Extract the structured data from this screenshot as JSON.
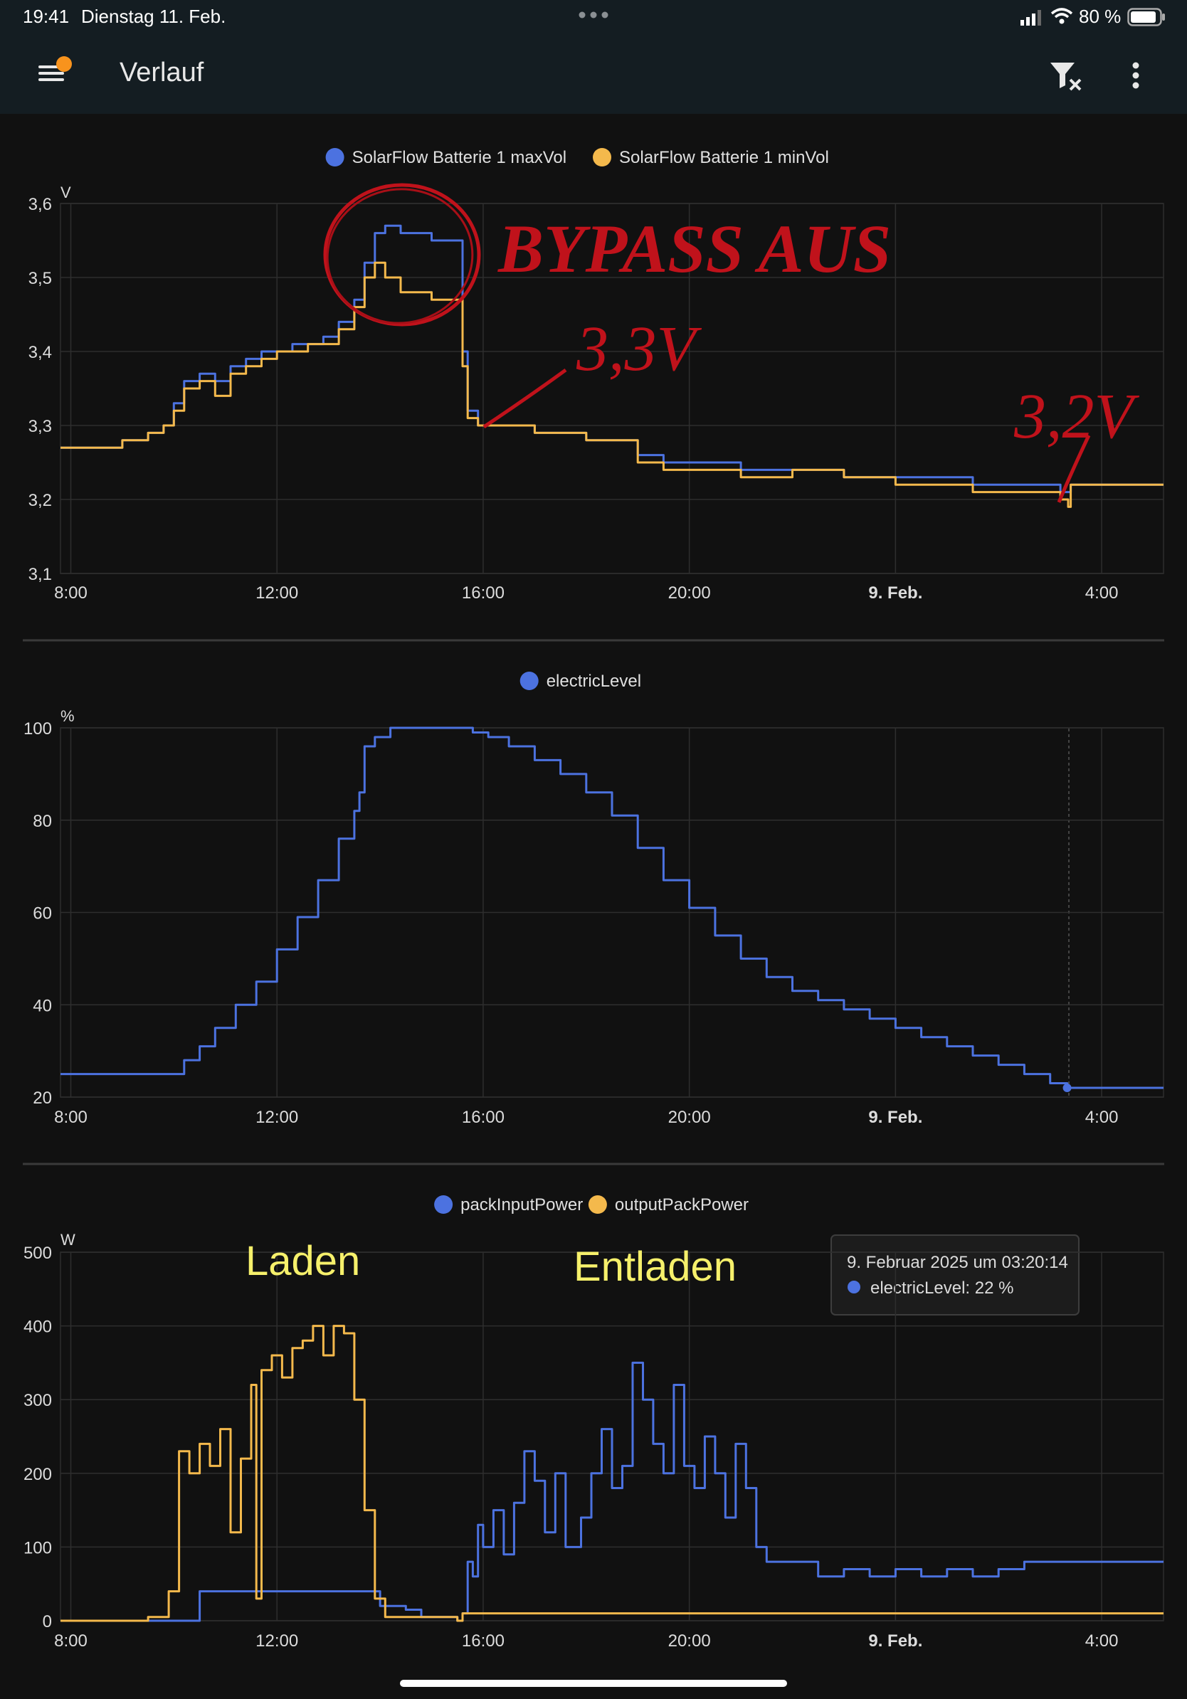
{
  "status_bar": {
    "time": "19:41",
    "date": "Dienstag 11. Feb.",
    "battery": "80 %"
  },
  "app_bar": {
    "title": "Verlauf"
  },
  "colors": {
    "blue": "#4c72e0",
    "yellow": "#f4b94c",
    "annotation_red": "#c0121b",
    "annotation_yellow": "#f6f06b"
  },
  "annotations": {
    "bypass": "BYPASS AUS",
    "v_33": "3,3V",
    "v_32": "3,2V",
    "charge": "Laden",
    "discharge": "Entladen"
  },
  "tooltip": {
    "title": "9. Februar 2025 um 03:20:14",
    "item": "electricLevel: 22 %"
  },
  "chart_data": [
    {
      "type": "line",
      "step": true,
      "ylabel": "V",
      "ylim": [
        3.1,
        3.6
      ],
      "yticks": [
        "3,1",
        "3,2",
        "3,3",
        "3,4",
        "3,5",
        "3,6"
      ],
      "xticks": [
        "8:00",
        "12:00",
        "16:00",
        "20:00",
        "9. Feb.",
        "4:00"
      ],
      "legend": "top-center",
      "grid": true,
      "series": [
        {
          "name": "SolarFlow Batterie 1 maxVol",
          "color": "#4c72e0",
          "points": [
            [
              7.8,
              3.27
            ],
            [
              8.5,
              3.27
            ],
            [
              9.0,
              3.28
            ],
            [
              9.5,
              3.29
            ],
            [
              9.8,
              3.3
            ],
            [
              10.0,
              3.33
            ],
            [
              10.2,
              3.36
            ],
            [
              10.5,
              3.37
            ],
            [
              10.8,
              3.36
            ],
            [
              11.1,
              3.38
            ],
            [
              11.4,
              3.39
            ],
            [
              11.7,
              3.4
            ],
            [
              12.0,
              3.4
            ],
            [
              12.3,
              3.41
            ],
            [
              12.6,
              3.41
            ],
            [
              12.9,
              3.42
            ],
            [
              13.2,
              3.44
            ],
            [
              13.5,
              3.47
            ],
            [
              13.7,
              3.52
            ],
            [
              13.9,
              3.56
            ],
            [
              14.1,
              3.57
            ],
            [
              14.4,
              3.56
            ],
            [
              14.7,
              3.56
            ],
            [
              15.0,
              3.55
            ],
            [
              15.5,
              3.55
            ],
            [
              15.6,
              3.4
            ],
            [
              15.7,
              3.32
            ],
            [
              15.9,
              3.3
            ],
            [
              16.5,
              3.3
            ],
            [
              17.0,
              3.29
            ],
            [
              18.0,
              3.28
            ],
            [
              19.0,
              3.26
            ],
            [
              19.5,
              3.25
            ],
            [
              20.0,
              3.25
            ],
            [
              21.0,
              3.24
            ],
            [
              22.0,
              3.24
            ],
            [
              23.0,
              3.23
            ],
            [
              24.0,
              3.23
            ],
            [
              25.5,
              3.22
            ],
            [
              27.2,
              3.21
            ],
            [
              27.35,
              3.21
            ],
            [
              27.4,
              3.22
            ],
            [
              29.2,
              3.22
            ]
          ]
        },
        {
          "name": "SolarFlow Batterie 1 minVol",
          "color": "#f4b94c",
          "points": [
            [
              7.8,
              3.27
            ],
            [
              8.5,
              3.27
            ],
            [
              9.0,
              3.28
            ],
            [
              9.5,
              3.29
            ],
            [
              9.8,
              3.3
            ],
            [
              10.0,
              3.32
            ],
            [
              10.2,
              3.35
            ],
            [
              10.5,
              3.36
            ],
            [
              10.8,
              3.34
            ],
            [
              11.1,
              3.37
            ],
            [
              11.4,
              3.38
            ],
            [
              11.7,
              3.39
            ],
            [
              12.0,
              3.4
            ],
            [
              12.3,
              3.4
            ],
            [
              12.6,
              3.41
            ],
            [
              12.9,
              3.41
            ],
            [
              13.2,
              3.43
            ],
            [
              13.5,
              3.46
            ],
            [
              13.7,
              3.5
            ],
            [
              13.9,
              3.52
            ],
            [
              14.1,
              3.5
            ],
            [
              14.4,
              3.48
            ],
            [
              14.7,
              3.48
            ],
            [
              15.0,
              3.47
            ],
            [
              15.5,
              3.47
            ],
            [
              15.6,
              3.38
            ],
            [
              15.7,
              3.31
            ],
            [
              15.9,
              3.3
            ],
            [
              16.5,
              3.3
            ],
            [
              17.0,
              3.29
            ],
            [
              18.0,
              3.28
            ],
            [
              19.0,
              3.25
            ],
            [
              19.5,
              3.24
            ],
            [
              20.0,
              3.24
            ],
            [
              21.0,
              3.23
            ],
            [
              22.0,
              3.24
            ],
            [
              23.0,
              3.23
            ],
            [
              24.0,
              3.22
            ],
            [
              25.5,
              3.21
            ],
            [
              27.2,
              3.2
            ],
            [
              27.35,
              3.19
            ],
            [
              27.4,
              3.22
            ],
            [
              29.2,
              3.22
            ]
          ]
        }
      ]
    },
    {
      "type": "line",
      "step": true,
      "ylabel": "%",
      "ylim": [
        20,
        100
      ],
      "yticks": [
        "20",
        "40",
        "60",
        "80",
        "100"
      ],
      "xticks": [
        "8:00",
        "12:00",
        "16:00",
        "20:00",
        "9. Feb.",
        "4:00"
      ],
      "legend": "top-center",
      "grid": true,
      "series": [
        {
          "name": "electricLevel",
          "color": "#4c72e0",
          "points": [
            [
              7.8,
              25
            ],
            [
              9.8,
              25
            ],
            [
              10.2,
              28
            ],
            [
              10.5,
              31
            ],
            [
              10.8,
              35
            ],
            [
              11.2,
              40
            ],
            [
              11.6,
              45
            ],
            [
              12.0,
              52
            ],
            [
              12.4,
              59
            ],
            [
              12.8,
              67
            ],
            [
              13.2,
              76
            ],
            [
              13.5,
              82
            ],
            [
              13.6,
              86
            ],
            [
              13.7,
              96
            ],
            [
              13.9,
              98
            ],
            [
              14.2,
              100
            ],
            [
              15.0,
              100
            ],
            [
              15.6,
              100
            ],
            [
              15.8,
              99
            ],
            [
              16.1,
              98
            ],
            [
              16.5,
              96
            ],
            [
              17.0,
              93
            ],
            [
              17.5,
              90
            ],
            [
              18.0,
              86
            ],
            [
              18.5,
              81
            ],
            [
              19.0,
              74
            ],
            [
              19.5,
              67
            ],
            [
              20.0,
              61
            ],
            [
              20.5,
              55
            ],
            [
              21.0,
              50
            ],
            [
              21.5,
              46
            ],
            [
              22.0,
              43
            ],
            [
              22.5,
              41
            ],
            [
              23.0,
              39
            ],
            [
              23.5,
              37
            ],
            [
              24.0,
              35
            ],
            [
              24.5,
              33
            ],
            [
              25.0,
              31
            ],
            [
              25.5,
              29
            ],
            [
              26.0,
              27
            ],
            [
              26.5,
              25
            ],
            [
              27.0,
              23
            ],
            [
              27.33,
              22
            ],
            [
              29.2,
              22
            ]
          ]
        }
      ]
    },
    {
      "type": "line",
      "step": true,
      "ylabel": "W",
      "ylim": [
        0,
        500
      ],
      "yticks": [
        "0",
        "100",
        "200",
        "300",
        "400",
        "500"
      ],
      "xticks": [
        "8:00",
        "12:00",
        "16:00",
        "20:00",
        "9. Feb.",
        "4:00"
      ],
      "legend": "top-center",
      "grid": true,
      "series": [
        {
          "name": "packInputPower",
          "color": "#4c72e0",
          "points": [
            [
              7.8,
              0
            ],
            [
              10.4,
              0
            ],
            [
              10.5,
              40
            ],
            [
              13.9,
              40
            ],
            [
              14.0,
              20
            ],
            [
              14.5,
              15
            ],
            [
              14.8,
              5
            ],
            [
              15.5,
              0
            ],
            [
              15.6,
              10
            ],
            [
              15.7,
              80
            ],
            [
              15.8,
              60
            ],
            [
              15.9,
              130
            ],
            [
              16.0,
              100
            ],
            [
              16.2,
              150
            ],
            [
              16.4,
              90
            ],
            [
              16.6,
              160
            ],
            [
              16.8,
              230
            ],
            [
              17.0,
              190
            ],
            [
              17.2,
              120
            ],
            [
              17.4,
              200
            ],
            [
              17.6,
              100
            ],
            [
              17.9,
              140
            ],
            [
              18.1,
              200
            ],
            [
              18.3,
              260
            ],
            [
              18.5,
              180
            ],
            [
              18.7,
              210
            ],
            [
              18.9,
              350
            ],
            [
              19.1,
              300
            ],
            [
              19.3,
              240
            ],
            [
              19.5,
              200
            ],
            [
              19.7,
              320
            ],
            [
              19.9,
              210
            ],
            [
              20.1,
              180
            ],
            [
              20.3,
              250
            ],
            [
              20.5,
              200
            ],
            [
              20.7,
              140
            ],
            [
              20.9,
              240
            ],
            [
              21.1,
              180
            ],
            [
              21.3,
              100
            ],
            [
              21.5,
              80
            ],
            [
              22.0,
              80
            ],
            [
              22.5,
              60
            ],
            [
              23.0,
              70
            ],
            [
              23.5,
              60
            ],
            [
              24.0,
              70
            ],
            [
              24.5,
              60
            ],
            [
              25.0,
              70
            ],
            [
              25.5,
              60
            ],
            [
              26.0,
              70
            ],
            [
              26.5,
              80
            ],
            [
              27.0,
              80
            ],
            [
              29.2,
              80
            ]
          ]
        },
        {
          "name": "outputPackPower",
          "color": "#f4b94c",
          "points": [
            [
              7.8,
              0
            ],
            [
              9.0,
              0
            ],
            [
              9.5,
              5
            ],
            [
              9.9,
              40
            ],
            [
              10.1,
              230
            ],
            [
              10.3,
              200
            ],
            [
              10.5,
              240
            ],
            [
              10.7,
              210
            ],
            [
              10.9,
              260
            ],
            [
              11.1,
              120
            ],
            [
              11.3,
              220
            ],
            [
              11.5,
              320
            ],
            [
              11.6,
              30
            ],
            [
              11.7,
              340
            ],
            [
              11.9,
              360
            ],
            [
              12.1,
              330
            ],
            [
              12.3,
              370
            ],
            [
              12.5,
              380
            ],
            [
              12.7,
              400
            ],
            [
              12.9,
              360
            ],
            [
              13.1,
              400
            ],
            [
              13.3,
              390
            ],
            [
              13.5,
              300
            ],
            [
              13.7,
              150
            ],
            [
              13.9,
              30
            ],
            [
              14.1,
              5
            ],
            [
              14.5,
              5
            ],
            [
              15.5,
              0
            ],
            [
              15.6,
              10
            ],
            [
              29.2,
              10
            ]
          ]
        }
      ]
    }
  ]
}
